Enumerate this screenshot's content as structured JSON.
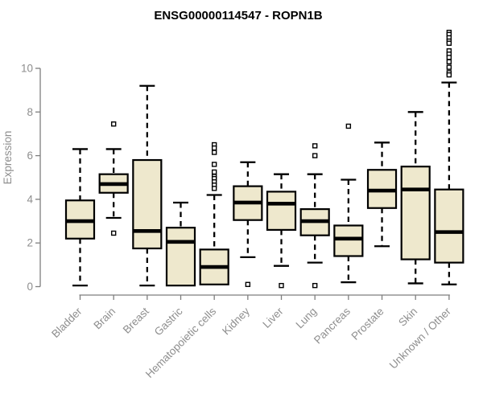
{
  "chart_data": {
    "type": "boxplot",
    "title": "ENSG00000114547 - ROPN1B",
    "xlabel": "",
    "ylabel": "Expression",
    "ylim": [
      0,
      11.7
    ],
    "yticks": [
      0,
      2,
      4,
      6,
      8,
      10
    ],
    "grid": false,
    "legend": "none",
    "x_label_rotation_deg": 45,
    "categories": [
      "Bladder",
      "Brain",
      "Breast",
      "Gastric",
      "Hematopoietic cells",
      "Kidney",
      "Liver",
      "Lung",
      "Pancreas",
      "Prostate",
      "Skin",
      "Unknown / Other"
    ],
    "boxes": [
      {
        "category": "Bladder",
        "whisker_low": 0.05,
        "q1": 2.2,
        "median": 3.0,
        "q3": 3.95,
        "whisker_high": 6.3,
        "outliers": []
      },
      {
        "category": "Brain",
        "whisker_low": 3.15,
        "q1": 4.3,
        "median": 4.7,
        "q3": 5.15,
        "whisker_high": 6.3,
        "outliers": [
          7.45,
          2.45
        ]
      },
      {
        "category": "Breast",
        "whisker_low": 0.05,
        "q1": 1.75,
        "median": 2.55,
        "q3": 5.8,
        "whisker_high": 9.2,
        "outliers": []
      },
      {
        "category": "Gastric",
        "whisker_low": 0.05,
        "q1": 0.05,
        "median": 2.05,
        "q3": 2.7,
        "whisker_high": 3.85,
        "outliers": []
      },
      {
        "category": "Hematopoietic cells",
        "whisker_low": 0.1,
        "q1": 0.1,
        "median": 0.9,
        "q3": 1.7,
        "whisker_high": 4.2,
        "outliers": [
          6.5,
          6.35,
          6.15,
          5.6,
          5.25,
          5.05,
          4.95,
          4.8,
          4.65,
          4.5
        ]
      },
      {
        "category": "Kidney",
        "whisker_low": 1.35,
        "q1": 3.05,
        "median": 3.85,
        "q3": 4.6,
        "whisker_high": 5.7,
        "outliers": [
          0.1
        ]
      },
      {
        "category": "Liver",
        "whisker_low": 0.95,
        "q1": 2.6,
        "median": 3.8,
        "q3": 4.35,
        "whisker_high": 5.15,
        "outliers": [
          0.05
        ]
      },
      {
        "category": "Lung",
        "whisker_low": 1.1,
        "q1": 2.35,
        "median": 3.0,
        "q3": 3.55,
        "whisker_high": 5.15,
        "outliers": [
          6.45,
          6.0,
          0.05
        ]
      },
      {
        "category": "Pancreas",
        "whisker_low": 0.2,
        "q1": 1.4,
        "median": 2.2,
        "q3": 2.8,
        "whisker_high": 4.9,
        "outliers": [
          7.35
        ]
      },
      {
        "category": "Prostate",
        "whisker_low": 1.85,
        "q1": 3.6,
        "median": 4.4,
        "q3": 5.35,
        "whisker_high": 6.6,
        "outliers": []
      },
      {
        "category": "Skin",
        "whisker_low": 0.15,
        "q1": 1.25,
        "median": 4.45,
        "q3": 5.5,
        "whisker_high": 8.0,
        "outliers": []
      },
      {
        "category": "Unknown / Other",
        "whisker_low": 0.1,
        "q1": 1.1,
        "median": 2.5,
        "q3": 4.45,
        "whisker_high": 9.35,
        "outliers": [
          11.65,
          11.55,
          11.4,
          11.25,
          11.15,
          10.8,
          10.65,
          10.5,
          10.3,
          10.05,
          9.8,
          9.7
        ]
      }
    ],
    "colors": {
      "box_fill": "#EEE8CD",
      "box_stroke": "#000000",
      "median": "#000000",
      "whisker": "#000000",
      "outlier_fill": "#FFFFFF",
      "outlier_stroke": "#000000",
      "axis_line": "#7E7E7E",
      "axis_text": "#8E8E8E",
      "title": "#000000",
      "background": "#FFFFFF"
    }
  }
}
